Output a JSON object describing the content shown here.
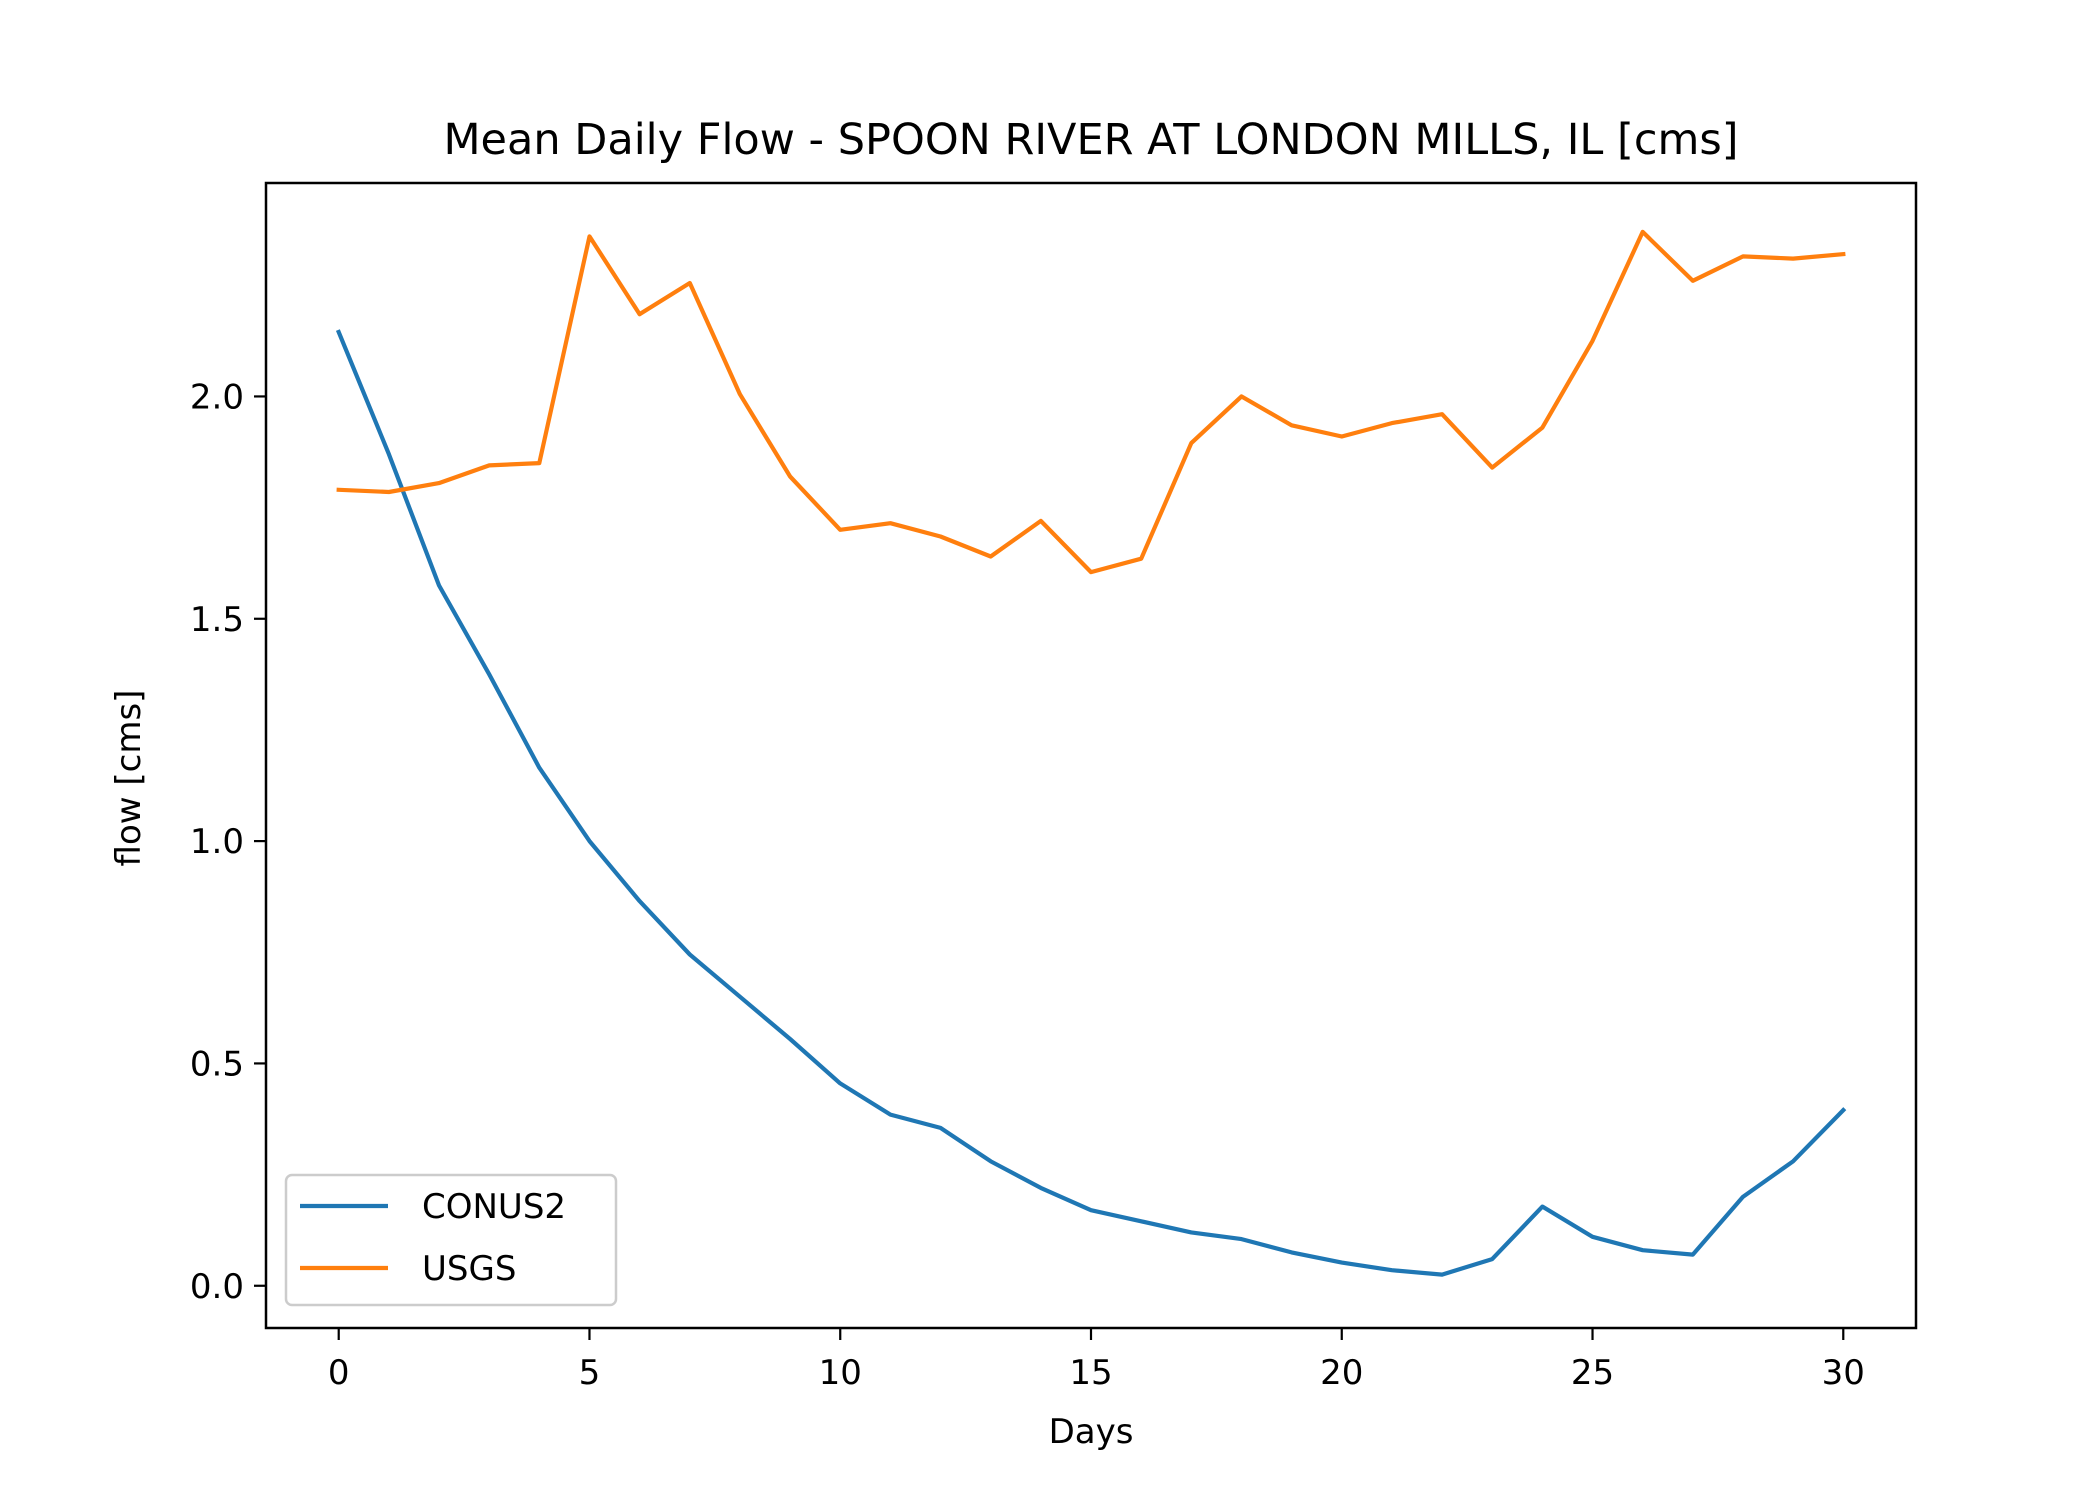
{
  "chart_data": {
    "type": "line",
    "title": "Mean Daily Flow - SPOON RIVER AT LONDON MILLS, IL [cms]",
    "xlabel": "Days",
    "ylabel": "flow [cms]",
    "xlim": [
      -1.45,
      31.45
    ],
    "ylim": [
      -0.095,
      2.48
    ],
    "xticks": [
      0,
      5,
      10,
      15,
      20,
      25,
      30
    ],
    "xtick_labels": [
      "0",
      "5",
      "10",
      "15",
      "20",
      "25",
      "30"
    ],
    "yticks": [
      0.0,
      0.5,
      1.0,
      1.5,
      2.0
    ],
    "ytick_labels": [
      "0.0",
      "0.5",
      "1.0",
      "1.5",
      "2.0"
    ],
    "grid": false,
    "legend_position": "lower-left",
    "x": [
      0,
      1,
      2,
      3,
      4,
      5,
      6,
      7,
      8,
      9,
      10,
      11,
      12,
      13,
      14,
      15,
      16,
      17,
      18,
      19,
      20,
      21,
      22,
      23,
      24,
      25,
      26,
      27,
      28,
      29,
      30
    ],
    "series": [
      {
        "name": "CONUS2",
        "color": "#1f77b4",
        "values": [
          2.145,
          1.87,
          1.575,
          1.375,
          1.165,
          1.0,
          0.865,
          0.745,
          0.65,
          0.555,
          0.455,
          0.385,
          0.355,
          0.28,
          0.22,
          0.17,
          0.145,
          0.12,
          0.105,
          0.075,
          0.052,
          0.035,
          0.025,
          0.06,
          0.178,
          0.11,
          0.08,
          0.07,
          0.2,
          0.28,
          0.395
        ]
      },
      {
        "name": "USGS",
        "color": "#ff7f0e",
        "values": [
          1.79,
          1.785,
          1.805,
          1.845,
          1.85,
          2.36,
          2.185,
          2.255,
          2.005,
          1.82,
          1.7,
          1.715,
          1.685,
          1.64,
          1.72,
          1.605,
          1.635,
          1.895,
          2.0,
          1.935,
          1.91,
          1.94,
          1.96,
          1.84,
          1.93,
          2.125,
          2.37,
          2.26,
          2.315,
          2.31,
          2.32
        ]
      }
    ]
  }
}
